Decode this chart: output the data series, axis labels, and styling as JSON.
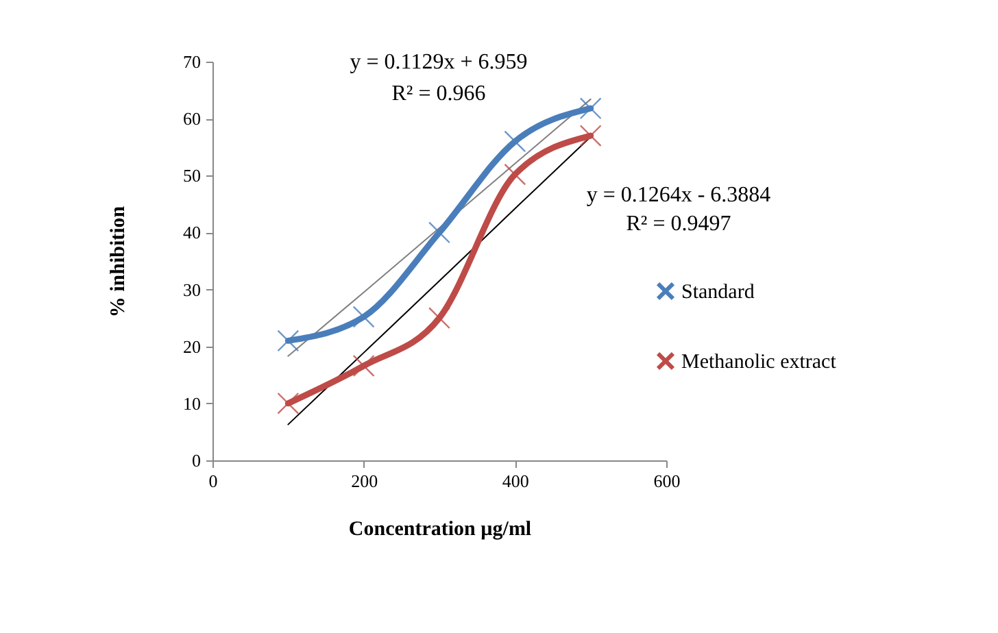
{
  "chart_data": {
    "type": "line",
    "xlabel": "Concentration µg/ml",
    "ylabel": "% inhibition",
    "x": [
      100,
      200,
      300,
      400,
      500
    ],
    "xlim": [
      0,
      600
    ],
    "xticks": [
      0,
      200,
      400,
      600
    ],
    "ylim": [
      0,
      70
    ],
    "yticks": [
      0,
      10,
      20,
      30,
      40,
      50,
      60,
      70
    ],
    "grid": false,
    "legend": "right",
    "marker": "cross",
    "series": [
      {
        "name": "Standard",
        "color": "#4a7ebb",
        "values": [
          21,
          25.2,
          40,
          56,
          61.8
        ]
      },
      {
        "name": "Methanolic extract",
        "color": "#be4b48",
        "values": [
          10,
          16.6,
          25,
          50.2,
          57
        ]
      },
      {
        "type": "line",
        "color": "#808080",
        "marker": "none",
        "values": [
          18.3,
          29.5,
          40.8,
          52.1,
          63.4
        ]
      },
      {
        "type": "line",
        "color": "#000000",
        "marker": "none",
        "values": [
          6.3,
          18.9,
          31.5,
          44.2,
          56.8
        ]
      }
    ],
    "annotations": [
      "y = 0.1129x + 6.959",
      "R² = 0.966",
      "y = 0.1264x - 6.3884",
      "R² = 0.9497"
    ]
  }
}
